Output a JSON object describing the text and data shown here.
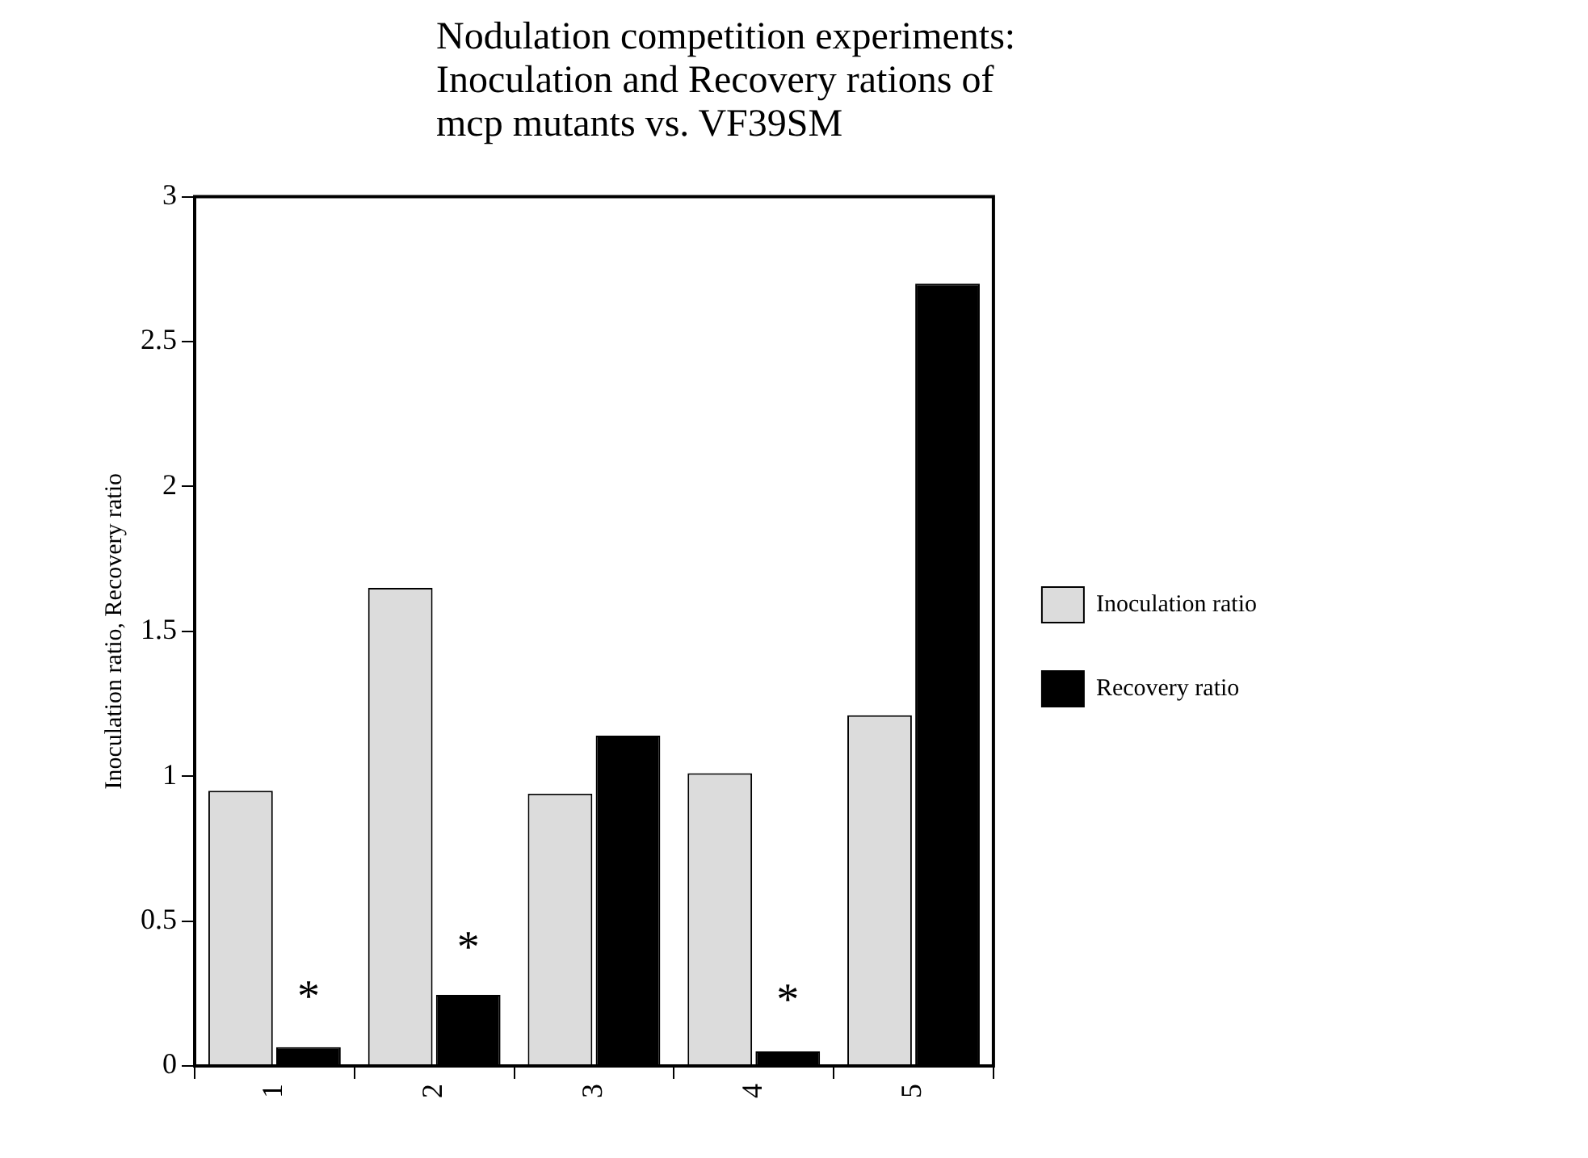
{
  "chart_data": {
    "type": "bar",
    "title": "Nodulation competition experiments: Inoculation and Recovery rations of mcp mutants vs. VF39SM",
    "ylabel": "Inoculation ratio, Recovery ratio",
    "categories": [
      "1",
      "2",
      "3",
      "4",
      "5"
    ],
    "series": [
      {
        "name": "Inoculation ratio",
        "color": "#dcdcdc",
        "values": [
          0.95,
          1.65,
          0.94,
          1.01,
          1.21
        ]
      },
      {
        "name": "Recovery ratio",
        "color": "#000000",
        "values": [
          0.065,
          0.245,
          1.14,
          0.05,
          2.7
        ]
      }
    ],
    "ylim": [
      0,
      3
    ],
    "yticks": [
      0,
      0.5,
      1,
      1.5,
      2,
      2.5,
      3
    ],
    "grid": false,
    "legend": "right",
    "annotations": [
      {
        "text": "*",
        "x": "1",
        "y": 0.23
      },
      {
        "text": "*",
        "x": "2",
        "y": 0.4
      },
      {
        "text": "*",
        "x": "4",
        "y": 0.22
      }
    ]
  }
}
